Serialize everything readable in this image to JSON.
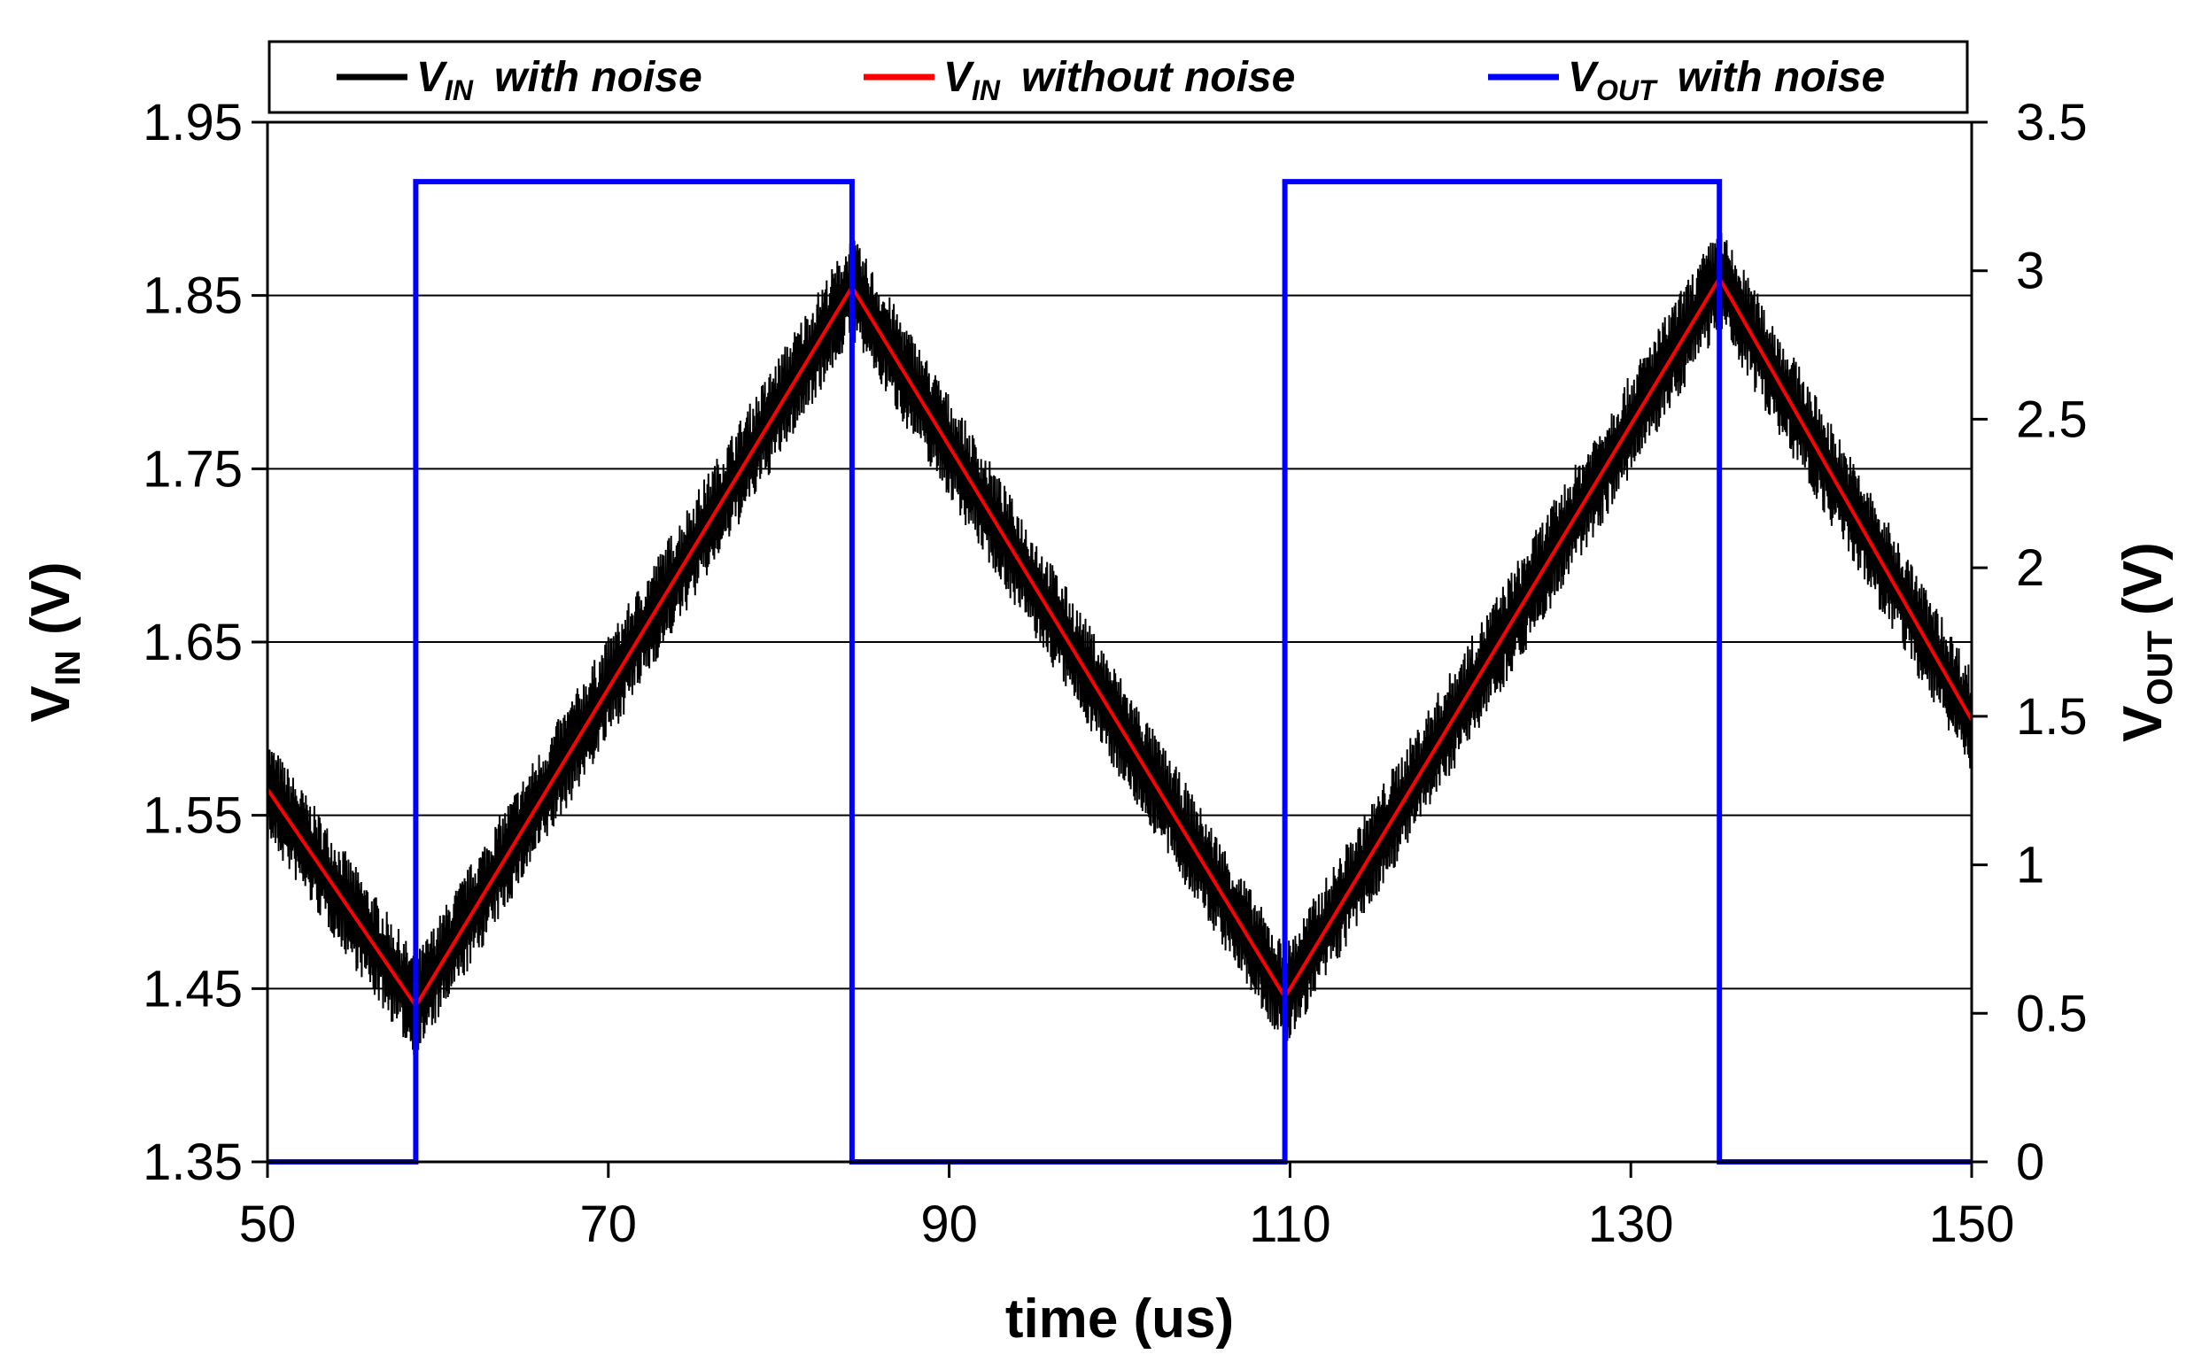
{
  "chart_data": {
    "type": "line",
    "xlabel": "time (us)",
    "ylabel_left": {
      "main": "V",
      "sub": "IN",
      "unit": " (V)"
    },
    "ylabel_right": {
      "main": "V",
      "sub": "OUT",
      "unit": " (V)"
    },
    "xlim": [
      50,
      150
    ],
    "ylim_left": [
      1.35,
      1.95
    ],
    "ylim_right": [
      0,
      3.5
    ],
    "x_ticks": [
      "50",
      "70",
      "90",
      "110",
      "130",
      "150"
    ],
    "y_left_ticks": [
      "1.35",
      "1.45",
      "1.55",
      "1.65",
      "1.75",
      "1.85",
      "1.95"
    ],
    "y_right_ticks": [
      "0",
      "0.5",
      "1",
      "1.5",
      "2",
      "2.5",
      "3",
      "3.5"
    ],
    "grid": "horizontal",
    "legend_position": "top",
    "series": [
      {
        "name": "with noise",
        "name_prefix": "V",
        "name_sub": "IN",
        "axis": "left",
        "color": "#000000",
        "noise_amplitude": 0.03,
        "x": [
          50,
          58.7,
          84.3,
          109.7,
          135.2,
          150
        ],
        "y": [
          1.565,
          1.44,
          1.855,
          1.445,
          1.86,
          1.605
        ]
      },
      {
        "name": "without noise",
        "name_prefix": "V",
        "name_sub": "IN",
        "axis": "left",
        "color": "#ff0000",
        "x": [
          50,
          58.7,
          84.3,
          109.7,
          135.2,
          150
        ],
        "y": [
          1.565,
          1.44,
          1.855,
          1.445,
          1.86,
          1.605
        ]
      },
      {
        "name": "with noise",
        "name_prefix": "V",
        "name_sub": "OUT",
        "axis": "right",
        "color": "#0000ff",
        "x": [
          50,
          58.7,
          58.7,
          84.3,
          84.3,
          109.7,
          109.7,
          135.2,
          135.2,
          150
        ],
        "y": [
          0,
          0,
          3.3,
          3.3,
          0,
          0,
          3.3,
          3.3,
          0,
          0
        ]
      }
    ]
  }
}
